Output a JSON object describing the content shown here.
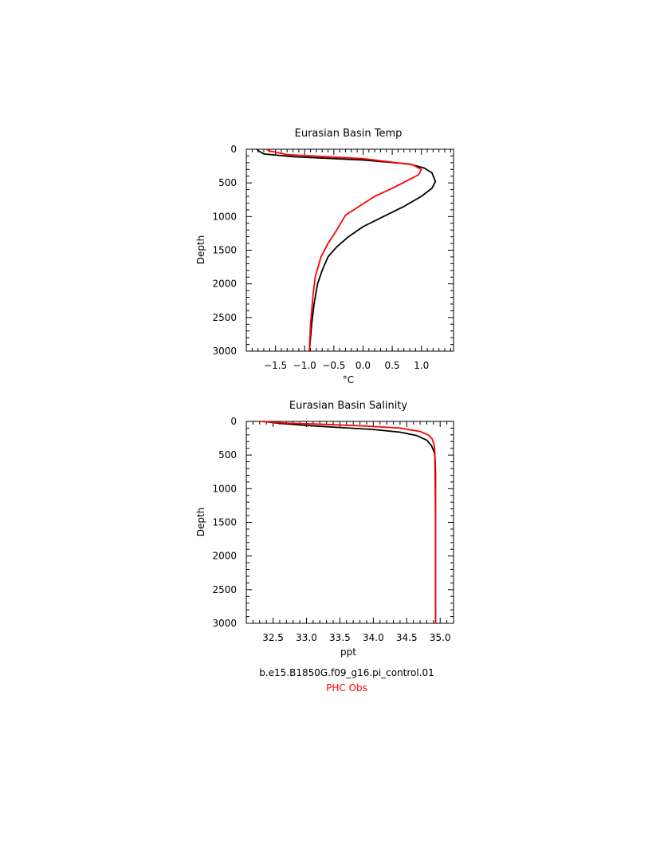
{
  "chart_data": [
    {
      "type": "line",
      "title": "Eurasian Basin Temp",
      "xlabel": "°C",
      "ylabel": "Depth",
      "xlim": [
        -2.0,
        1.55
      ],
      "ylim": [
        0,
        3000
      ],
      "y_inverted": true,
      "grid": false,
      "xticks": [
        -1.5,
        -1.0,
        -0.5,
        0.0,
        0.5,
        1.0
      ],
      "xtick_labels": [
        "−1.5",
        "−1.0",
        "−0.5",
        "0.0",
        "0.5",
        "1.0"
      ],
      "yticks": [
        0,
        500,
        1000,
        1500,
        2000,
        2500,
        3000
      ],
      "ytick_labels": [
        "0",
        "500",
        "1000",
        "1500",
        "2000",
        "2500",
        "3000"
      ],
      "series": [
        {
          "name": "b.e15.B1850G.f09_g16.pi_control.01",
          "color": "#000000",
          "x": [
            -1.82,
            -1.78,
            -1.7,
            -1.2,
            0.0,
            0.8,
            1.05,
            1.18,
            1.24,
            1.18,
            1.0,
            0.7,
            0.35,
            0.0,
            -0.25,
            -0.45,
            -0.6,
            -0.7,
            -0.78,
            -0.84,
            -0.88,
            -0.9,
            -0.92
          ],
          "y": [
            0,
            30,
            70,
            110,
            160,
            220,
            280,
            350,
            480,
            580,
            700,
            850,
            1000,
            1150,
            1300,
            1450,
            1600,
            1800,
            2000,
            2300,
            2600,
            2800,
            3000
          ]
        },
        {
          "name": "PHC Obs",
          "color": "#ff0000",
          "x": [
            -1.65,
            -1.62,
            -1.3,
            0.0,
            0.85,
            1.0,
            0.95,
            0.75,
            0.5,
            0.2,
            -0.05,
            -0.3,
            -0.45,
            -0.6,
            -0.72,
            -0.82,
            -0.86,
            -0.9,
            -0.92
          ],
          "y": [
            0,
            20,
            80,
            140,
            230,
            300,
            380,
            470,
            580,
            700,
            840,
            980,
            1200,
            1400,
            1600,
            1900,
            2200,
            2600,
            3000
          ]
        }
      ]
    },
    {
      "type": "line",
      "title": "Eurasian Basin Salinity",
      "xlabel": "ppt",
      "ylabel": "Depth",
      "xlim": [
        32.1,
        35.2
      ],
      "ylim": [
        0,
        3000
      ],
      "y_inverted": true,
      "grid": false,
      "xticks": [
        32.5,
        33.0,
        33.5,
        34.0,
        34.5,
        35.0
      ],
      "xtick_labels": [
        "32.5",
        "33.0",
        "33.5",
        "34.0",
        "34.5",
        "35.0"
      ],
      "yticks": [
        0,
        500,
        1000,
        1500,
        2000,
        2500,
        3000
      ],
      "ytick_labels": [
        "0",
        "500",
        "1000",
        "1500",
        "2000",
        "2500",
        "3000"
      ],
      "series": [
        {
          "name": "b.e15.B1850G.f09_g16.pi_control.01",
          "color": "#000000",
          "x": [
            32.35,
            32.6,
            33.0,
            33.5,
            34.0,
            34.4,
            34.65,
            34.8,
            34.87,
            34.91,
            34.925,
            34.93,
            34.93,
            34.93
          ],
          "y": [
            0,
            30,
            60,
            90,
            120,
            160,
            210,
            280,
            360,
            450,
            550,
            800,
            1500,
            3000
          ]
        },
        {
          "name": "PHC Obs",
          "color": "#ff0000",
          "x": [
            32.3,
            32.7,
            33.3,
            33.9,
            34.4,
            34.7,
            34.82,
            34.88,
            34.91,
            34.92,
            34.925,
            34.93,
            34.93
          ],
          "y": [
            0,
            25,
            45,
            70,
            100,
            150,
            200,
            260,
            350,
            450,
            800,
            1500,
            3000
          ]
        }
      ]
    }
  ],
  "legend": {
    "model_run": "b.e15.B1850G.f09_g16.pi_control.01",
    "obs": "PHC Obs",
    "model_color": "#000000",
    "obs_color": "#ff0000"
  }
}
